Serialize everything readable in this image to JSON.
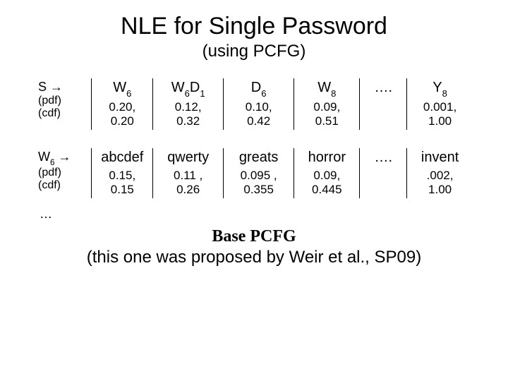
{
  "title": "NLE for Single Password",
  "subtitle": "(using PCFG)",
  "table1": {
    "rowhead_main": "S →",
    "rowhead_sub1": "(pdf)",
    "rowhead_sub2": "(cdf)",
    "h1_a": "W",
    "h1_b": "6",
    "h2_a": "W",
    "h2_b": "6",
    "h2_c": "D",
    "h2_d": "1",
    "h3_a": "D",
    "h3_b": "6",
    "h4_a": "W",
    "h4_b": "8",
    "h5": "….",
    "h6_a": "Y",
    "h6_b": "8",
    "v1a": "0.20,",
    "v1b": "0.20",
    "v2a": "0.12,",
    "v2b": "0.32",
    "v3a": "0.10,",
    "v3b": "0.42",
    "v4a": "0.09,",
    "v4b": "0.51",
    "v6a": "0.001,",
    "v6b": "1.00"
  },
  "table2": {
    "rowhead_main_a": "W",
    "rowhead_main_b": "6",
    "rowhead_main_c": " →",
    "rowhead_sub1": "(pdf)",
    "rowhead_sub2": "(cdf)",
    "h1": "abcdef",
    "h2": "qwerty",
    "h3": "greats",
    "h4": "horror",
    "h5": "….",
    "h6": "invent",
    "v1a": "0.15,",
    "v1b": "0.15",
    "v2a": "0.11 ,",
    "v2b": "0.26",
    "v3a": "0.095 ,",
    "v3b": "0.355",
    "v4a": "0.09,",
    "v4b": "0.445",
    "v6a": ".002,",
    "v6b": "1.00"
  },
  "ellipsis": "…",
  "base_label": "Base PCFG",
  "attribution": "(this one was proposed by Weir et al., SP09)",
  "colors": {
    "background": "#ffffff",
    "text": "#000000",
    "rule": "#000000"
  }
}
